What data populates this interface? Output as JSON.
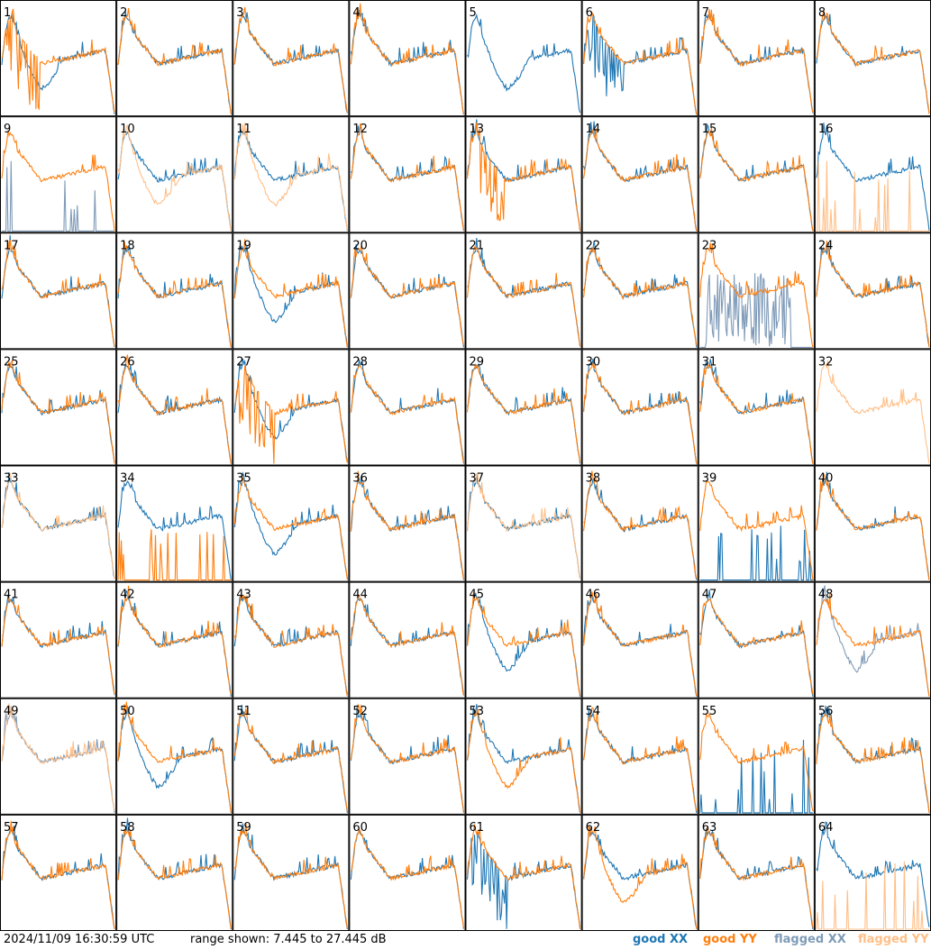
{
  "footer": {
    "timestamp": "2024/11/09 16:30:59 UTC",
    "range_text": "range shown: 7.445 to 27.445 dB"
  },
  "legend": {
    "good_xx": {
      "label": "good",
      "pol": "XX",
      "color": "#1f77b4"
    },
    "good_yy": {
      "label": "good",
      "pol": "YY",
      "color": "#ff7f0e"
    },
    "flagged_xx": {
      "label": "flagged",
      "pol": "XX",
      "color": "#7f9bb8"
    },
    "flagged_yy": {
      "label": "flagged",
      "pol": "YY",
      "color": "#ffbf87"
    }
  },
  "chart_data": {
    "type": "line",
    "layout": "small-multiples 8x8",
    "ylim_db": [
      7.445,
      27.445
    ],
    "panels": [
      {
        "label": "1",
        "xx": {
          "shape": "dip",
          "state": "good"
        },
        "yy": {
          "shape": "spiky",
          "state": "good"
        }
      },
      {
        "label": "2",
        "xx": {
          "shape": "normal",
          "state": "good"
        },
        "yy": {
          "shape": "normal",
          "state": "good"
        }
      },
      {
        "label": "3",
        "xx": {
          "shape": "normal",
          "state": "good"
        },
        "yy": {
          "shape": "normal",
          "state": "good"
        }
      },
      {
        "label": "4",
        "xx": {
          "shape": "normal",
          "state": "good"
        },
        "yy": {
          "shape": "normal",
          "state": "good"
        }
      },
      {
        "label": "5",
        "xx": {
          "shape": "dip",
          "state": "good"
        },
        "yy": {
          "shape": "none",
          "state": "good"
        }
      },
      {
        "label": "6",
        "xx": {
          "shape": "spiky",
          "state": "good"
        },
        "yy": {
          "shape": "normal",
          "state": "good"
        }
      },
      {
        "label": "7",
        "xx": {
          "shape": "normal",
          "state": "good"
        },
        "yy": {
          "shape": "normal",
          "state": "good"
        }
      },
      {
        "label": "8",
        "xx": {
          "shape": "normal",
          "state": "good"
        },
        "yy": {
          "shape": "normal",
          "state": "good"
        }
      },
      {
        "label": "9",
        "xx": {
          "shape": "bursts",
          "state": "flagged"
        },
        "yy": {
          "shape": "normal",
          "state": "good"
        }
      },
      {
        "label": "10",
        "xx": {
          "shape": "normal",
          "state": "good"
        },
        "yy": {
          "shape": "dip",
          "state": "flagged"
        }
      },
      {
        "label": "11",
        "xx": {
          "shape": "normal",
          "state": "good"
        },
        "yy": {
          "shape": "dip",
          "state": "flagged"
        }
      },
      {
        "label": "12",
        "xx": {
          "shape": "normal",
          "state": "good"
        },
        "yy": {
          "shape": "normal",
          "state": "good"
        }
      },
      {
        "label": "13",
        "xx": {
          "shape": "normal",
          "state": "good"
        },
        "yy": {
          "shape": "spiky",
          "state": "good"
        }
      },
      {
        "label": "14",
        "xx": {
          "shape": "normal",
          "state": "good"
        },
        "yy": {
          "shape": "normal",
          "state": "good"
        }
      },
      {
        "label": "15",
        "xx": {
          "shape": "normal",
          "state": "good"
        },
        "yy": {
          "shape": "normal",
          "state": "good"
        }
      },
      {
        "label": "16",
        "xx": {
          "shape": "normal",
          "state": "good"
        },
        "yy": {
          "shape": "bursts",
          "state": "flagged"
        }
      },
      {
        "label": "17",
        "xx": {
          "shape": "normal",
          "state": "good"
        },
        "yy": {
          "shape": "normal",
          "state": "good"
        }
      },
      {
        "label": "18",
        "xx": {
          "shape": "normal",
          "state": "good"
        },
        "yy": {
          "shape": "normal",
          "state": "good"
        }
      },
      {
        "label": "19",
        "xx": {
          "shape": "dip",
          "state": "good"
        },
        "yy": {
          "shape": "normal",
          "state": "good"
        }
      },
      {
        "label": "20",
        "xx": {
          "shape": "normal",
          "state": "good"
        },
        "yy": {
          "shape": "normal",
          "state": "good"
        }
      },
      {
        "label": "21",
        "xx": {
          "shape": "normal",
          "state": "good"
        },
        "yy": {
          "shape": "normal",
          "state": "good"
        }
      },
      {
        "label": "22",
        "xx": {
          "shape": "normal",
          "state": "good"
        },
        "yy": {
          "shape": "normal",
          "state": "good"
        }
      },
      {
        "label": "23",
        "xx": {
          "shape": "noisy",
          "state": "flagged"
        },
        "yy": {
          "shape": "normal",
          "state": "good"
        }
      },
      {
        "label": "24",
        "xx": {
          "shape": "normal",
          "state": "good"
        },
        "yy": {
          "shape": "normal",
          "state": "good"
        }
      },
      {
        "label": "25",
        "xx": {
          "shape": "normal",
          "state": "good"
        },
        "yy": {
          "shape": "normal",
          "state": "good"
        }
      },
      {
        "label": "26",
        "xx": {
          "shape": "normal",
          "state": "good"
        },
        "yy": {
          "shape": "normal",
          "state": "good"
        }
      },
      {
        "label": "27",
        "xx": {
          "shape": "dip",
          "state": "good"
        },
        "yy": {
          "shape": "spiky",
          "state": "good"
        }
      },
      {
        "label": "28",
        "xx": {
          "shape": "normal",
          "state": "good"
        },
        "yy": {
          "shape": "normal",
          "state": "good"
        }
      },
      {
        "label": "29",
        "xx": {
          "shape": "normal",
          "state": "good"
        },
        "yy": {
          "shape": "normal",
          "state": "good"
        }
      },
      {
        "label": "30",
        "xx": {
          "shape": "normal",
          "state": "good"
        },
        "yy": {
          "shape": "normal",
          "state": "good"
        }
      },
      {
        "label": "31",
        "xx": {
          "shape": "normal",
          "state": "good"
        },
        "yy": {
          "shape": "normal",
          "state": "good"
        }
      },
      {
        "label": "32",
        "xx": {
          "shape": "none",
          "state": "flagged"
        },
        "yy": {
          "shape": "normal",
          "state": "flagged"
        }
      },
      {
        "label": "33",
        "xx": {
          "shape": "normal",
          "state": "good"
        },
        "yy": {
          "shape": "normal",
          "state": "flagged"
        }
      },
      {
        "label": "34",
        "xx": {
          "shape": "normal",
          "state": "good"
        },
        "yy": {
          "shape": "bursts",
          "state": "good"
        }
      },
      {
        "label": "35",
        "xx": {
          "shape": "dip",
          "state": "good"
        },
        "yy": {
          "shape": "normal",
          "state": "good"
        }
      },
      {
        "label": "36",
        "xx": {
          "shape": "normal",
          "state": "good"
        },
        "yy": {
          "shape": "normal",
          "state": "good"
        }
      },
      {
        "label": "37",
        "xx": {
          "shape": "normal",
          "state": "good"
        },
        "yy": {
          "shape": "normal",
          "state": "flagged"
        }
      },
      {
        "label": "38",
        "xx": {
          "shape": "normal",
          "state": "good"
        },
        "yy": {
          "shape": "normal",
          "state": "good"
        }
      },
      {
        "label": "39",
        "xx": {
          "shape": "bursts",
          "state": "good"
        },
        "yy": {
          "shape": "normal",
          "state": "good"
        }
      },
      {
        "label": "40",
        "xx": {
          "shape": "normal",
          "state": "good"
        },
        "yy": {
          "shape": "normal",
          "state": "good"
        }
      },
      {
        "label": "41",
        "xx": {
          "shape": "normal",
          "state": "good"
        },
        "yy": {
          "shape": "normal",
          "state": "good"
        }
      },
      {
        "label": "42",
        "xx": {
          "shape": "normal",
          "state": "good"
        },
        "yy": {
          "shape": "normal",
          "state": "good"
        }
      },
      {
        "label": "43",
        "xx": {
          "shape": "normal",
          "state": "good"
        },
        "yy": {
          "shape": "normal",
          "state": "good"
        }
      },
      {
        "label": "44",
        "xx": {
          "shape": "normal",
          "state": "good"
        },
        "yy": {
          "shape": "normal",
          "state": "good"
        }
      },
      {
        "label": "45",
        "xx": {
          "shape": "dip",
          "state": "good"
        },
        "yy": {
          "shape": "normal",
          "state": "good"
        }
      },
      {
        "label": "46",
        "xx": {
          "shape": "normal",
          "state": "good"
        },
        "yy": {
          "shape": "normal",
          "state": "good"
        }
      },
      {
        "label": "47",
        "xx": {
          "shape": "normal",
          "state": "good"
        },
        "yy": {
          "shape": "normal",
          "state": "good"
        }
      },
      {
        "label": "48",
        "xx": {
          "shape": "dip",
          "state": "flagged"
        },
        "yy": {
          "shape": "normal",
          "state": "good"
        }
      },
      {
        "label": "49",
        "xx": {
          "shape": "normal",
          "state": "flagged"
        },
        "yy": {
          "shape": "normal",
          "state": "flagged"
        }
      },
      {
        "label": "50",
        "xx": {
          "shape": "dip",
          "state": "good"
        },
        "yy": {
          "shape": "normal",
          "state": "good"
        }
      },
      {
        "label": "51",
        "xx": {
          "shape": "normal",
          "state": "good"
        },
        "yy": {
          "shape": "normal",
          "state": "good"
        }
      },
      {
        "label": "52",
        "xx": {
          "shape": "normal",
          "state": "good"
        },
        "yy": {
          "shape": "normal",
          "state": "good"
        }
      },
      {
        "label": "53",
        "xx": {
          "shape": "normal",
          "state": "good"
        },
        "yy": {
          "shape": "dip",
          "state": "good"
        }
      },
      {
        "label": "54",
        "xx": {
          "shape": "normal",
          "state": "good"
        },
        "yy": {
          "shape": "normal",
          "state": "good"
        }
      },
      {
        "label": "55",
        "xx": {
          "shape": "bursts",
          "state": "good"
        },
        "yy": {
          "shape": "normal",
          "state": "good"
        }
      },
      {
        "label": "56",
        "xx": {
          "shape": "normal",
          "state": "good"
        },
        "yy": {
          "shape": "normal",
          "state": "good"
        }
      },
      {
        "label": "57",
        "xx": {
          "shape": "normal",
          "state": "good"
        },
        "yy": {
          "shape": "normal",
          "state": "good"
        }
      },
      {
        "label": "58",
        "xx": {
          "shape": "normal",
          "state": "good"
        },
        "yy": {
          "shape": "normal",
          "state": "good"
        }
      },
      {
        "label": "59",
        "xx": {
          "shape": "normal",
          "state": "good"
        },
        "yy": {
          "shape": "normal",
          "state": "good"
        }
      },
      {
        "label": "60",
        "xx": {
          "shape": "normal",
          "state": "good"
        },
        "yy": {
          "shape": "normal",
          "state": "good"
        }
      },
      {
        "label": "61",
        "xx": {
          "shape": "spiky",
          "state": "good"
        },
        "yy": {
          "shape": "normal",
          "state": "good"
        }
      },
      {
        "label": "62",
        "xx": {
          "shape": "normal",
          "state": "good"
        },
        "yy": {
          "shape": "dip",
          "state": "good"
        }
      },
      {
        "label": "63",
        "xx": {
          "shape": "normal",
          "state": "good"
        },
        "yy": {
          "shape": "normal",
          "state": "good"
        }
      },
      {
        "label": "64",
        "xx": {
          "shape": "normal",
          "state": "good"
        },
        "yy": {
          "shape": "bursts",
          "state": "flagged"
        }
      }
    ]
  }
}
